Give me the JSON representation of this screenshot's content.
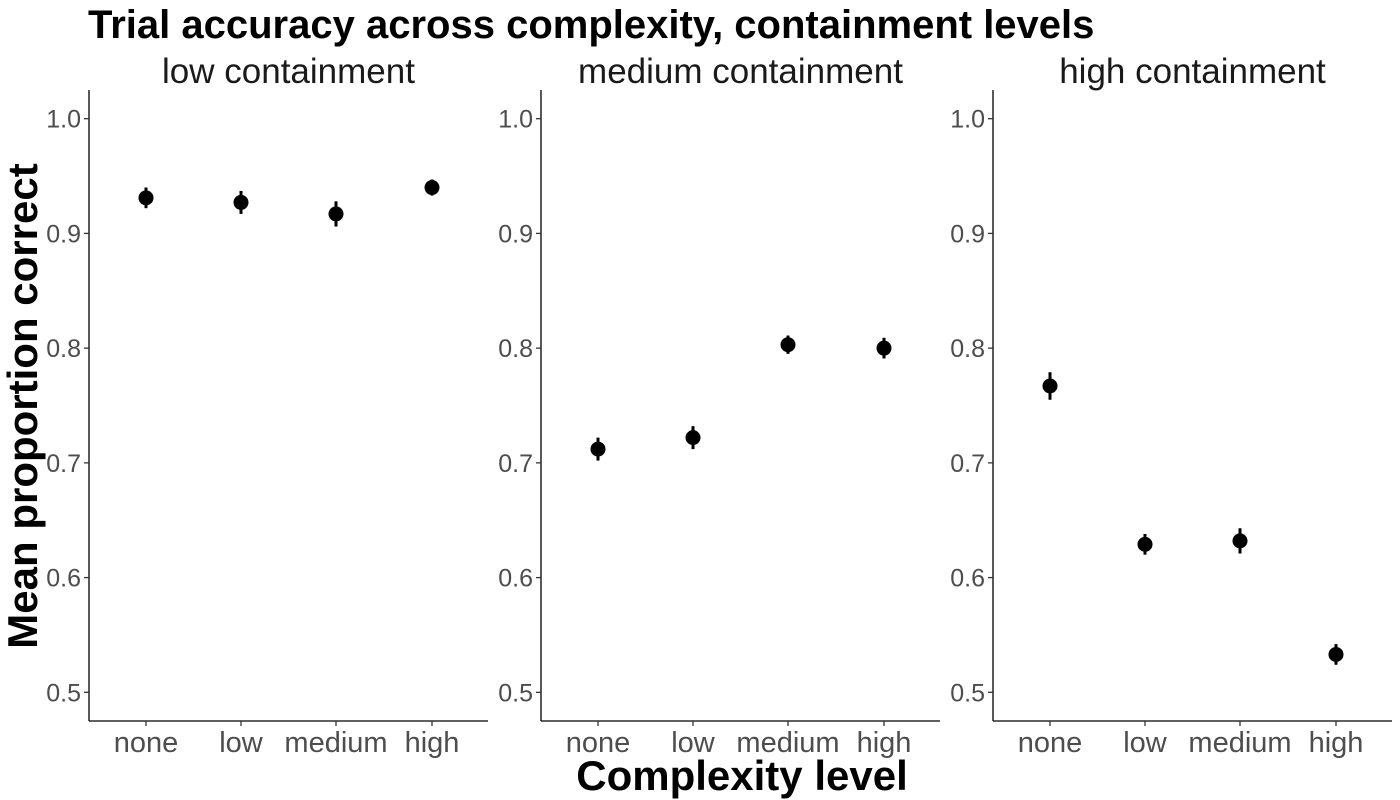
{
  "chart_data": {
    "type": "scatter",
    "title": "Trial accuracy across complexity, containment levels",
    "xlabel": "Complexity level",
    "ylabel": "Mean proportion correct",
    "categories": [
      "none",
      "low",
      "medium",
      "high"
    ],
    "ylim": [
      0.475,
      1.025
    ],
    "yticks": [
      0.5,
      0.6,
      0.7,
      0.8,
      0.9,
      1.0
    ],
    "ytick_labels": [
      "0.5",
      "0.6",
      "0.7",
      "0.8",
      "0.9",
      "1.0"
    ],
    "grid": false,
    "legend": "none",
    "point_color": "#000000",
    "panels": [
      {
        "name": "low containment",
        "values": [
          0.931,
          0.927,
          0.917,
          0.94
        ],
        "errors": [
          0.009,
          0.01,
          0.011,
          0.007
        ]
      },
      {
        "name": "medium containment",
        "values": [
          0.712,
          0.722,
          0.803,
          0.8
        ],
        "errors": [
          0.01,
          0.01,
          0.008,
          0.009
        ]
      },
      {
        "name": "high containment",
        "values": [
          0.767,
          0.629,
          0.632,
          0.533
        ],
        "errors": [
          0.012,
          0.009,
          0.011,
          0.009
        ]
      }
    ]
  }
}
